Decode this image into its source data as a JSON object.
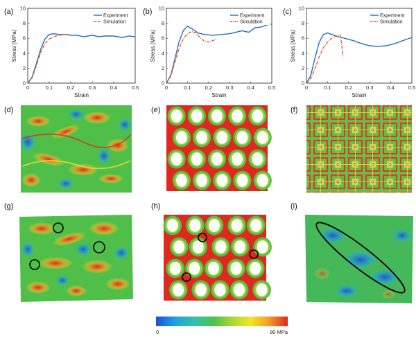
{
  "chart_data": [
    {
      "type": "line",
      "panel": "(a)",
      "xlabel": "Strain",
      "ylabel": "Stress (MPa)",
      "xlim": [
        0,
        0.5
      ],
      "ylim": [
        0,
        10
      ],
      "xticks": [
        "0",
        "0.1",
        "0.2",
        "0.3",
        "0.4",
        "0.5"
      ],
      "yticks": [
        "0",
        "2",
        "4",
        "6",
        "8",
        "10"
      ],
      "legend": "top-right",
      "series": [
        {
          "name": "Experiment",
          "color": "#1f6fc0",
          "style": "solid",
          "x": [
            0,
            0.02,
            0.04,
            0.06,
            0.08,
            0.1,
            0.12,
            0.15,
            0.18,
            0.2,
            0.23,
            0.26,
            0.28,
            0.3,
            0.33,
            0.36,
            0.4,
            0.44,
            0.47,
            0.5
          ],
          "y": [
            0,
            0.8,
            2.6,
            4.5,
            5.9,
            6.5,
            6.6,
            6.5,
            6.5,
            6.4,
            6.4,
            6.2,
            6.3,
            6.4,
            6.2,
            6.3,
            6.3,
            6.1,
            6.3,
            6.2
          ]
        },
        {
          "name": "Simulation",
          "color": "#e0502a",
          "style": "dashdot",
          "x": [
            0,
            0.02,
            0.04,
            0.06,
            0.08,
            0.1,
            0.12,
            0.14,
            0.16,
            0.18,
            0.2
          ],
          "y": [
            0,
            0.7,
            2.3,
            4.1,
            5.3,
            5.9,
            6.2,
            6.35,
            6.45,
            6.5,
            6.5
          ]
        }
      ]
    },
    {
      "type": "line",
      "panel": "(b)",
      "xlabel": "Strain",
      "ylabel": "Stress (MPa)",
      "xlim": [
        0,
        0.5
      ],
      "ylim": [
        0,
        10
      ],
      "xticks": [
        "0",
        "0.1",
        "0.2",
        "0.3",
        "0.4",
        "0.5"
      ],
      "yticks": [
        "0",
        "2",
        "4",
        "6",
        "8",
        "10"
      ],
      "legend": "top-right",
      "series": [
        {
          "name": "Experiment",
          "color": "#1f6fc0",
          "style": "solid",
          "x": [
            0,
            0.02,
            0.04,
            0.06,
            0.08,
            0.1,
            0.12,
            0.15,
            0.18,
            0.22,
            0.26,
            0.3,
            0.33,
            0.36,
            0.39,
            0.42,
            0.45,
            0.48,
            0.5
          ],
          "y": [
            0,
            1.0,
            3.2,
            5.5,
            7.0,
            7.6,
            7.3,
            6.7,
            6.5,
            6.4,
            6.5,
            6.6,
            6.8,
            7.0,
            6.8,
            7.4,
            7.5,
            7.8,
            7.9
          ]
        },
        {
          "name": "Simulation",
          "color": "#e0502a",
          "style": "dashdot",
          "x": [
            0,
            0.02,
            0.04,
            0.06,
            0.08,
            0.1,
            0.12,
            0.14,
            0.16,
            0.18,
            0.2,
            0.22,
            0.24
          ],
          "y": [
            0,
            0.9,
            2.8,
            4.6,
            5.9,
            6.6,
            6.9,
            6.7,
            6.1,
            5.6,
            5.5,
            5.7,
            5.9
          ]
        }
      ]
    },
    {
      "type": "line",
      "panel": "(c)",
      "xlabel": "Strain",
      "ylabel": "Stress (MPa)",
      "xlim": [
        0,
        0.5
      ],
      "ylim": [
        0,
        10
      ],
      "xticks": [
        "0",
        "0.1",
        "0.2",
        "0.3",
        "0.4",
        "0.5"
      ],
      "yticks": [
        "0",
        "2",
        "4",
        "6",
        "8",
        "10"
      ],
      "legend": "top-right",
      "series": [
        {
          "name": "Experiment",
          "color": "#1f6fc0",
          "style": "solid",
          "x": [
            0,
            0.02,
            0.04,
            0.06,
            0.08,
            0.1,
            0.12,
            0.15,
            0.18,
            0.22,
            0.26,
            0.3,
            0.34,
            0.38,
            0.42,
            0.46,
            0.5
          ],
          "y": [
            0,
            1.0,
            3.3,
            5.4,
            6.5,
            6.7,
            6.5,
            6.2,
            6.0,
            5.7,
            5.3,
            5.0,
            4.9,
            5.0,
            5.3,
            5.7,
            6.1
          ]
        },
        {
          "name": "Simulation",
          "color": "#e0502a",
          "style": "dashdot",
          "x": [
            0,
            0.02,
            0.04,
            0.06,
            0.08,
            0.1,
            0.12,
            0.14,
            0.16,
            0.165,
            0.17,
            0.172,
            0.175
          ],
          "y": [
            0,
            0.6,
            1.9,
            3.5,
            4.7,
            5.5,
            6.0,
            6.3,
            6.4,
            5.5,
            4.5,
            3.8,
            3.5
          ]
        }
      ]
    }
  ],
  "panels": {
    "d": "(d)",
    "e": "(e)",
    "f": "(f)",
    "g": "(g)",
    "h": "(h)",
    "i": "(i)"
  },
  "colorbar": {
    "min_label": "0",
    "max_label": "80 MPa",
    "colors": [
      "#1e4fd8",
      "#1f9fe0",
      "#31c0b0",
      "#4cc34a",
      "#b9d832",
      "#f2e42a",
      "#f29a2a",
      "#e0281e"
    ]
  }
}
